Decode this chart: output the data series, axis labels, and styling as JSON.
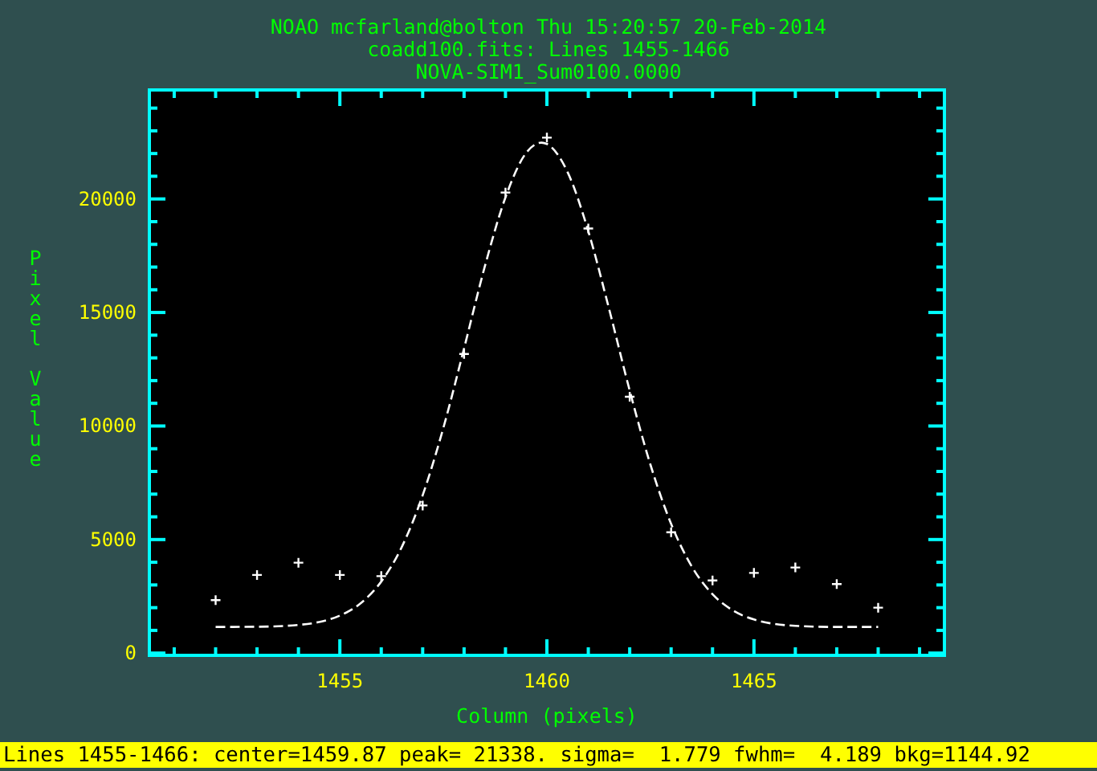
{
  "chart_data": {
    "type": "scatter",
    "title": "NOAO mcfarland@bolton Thu 15:20:57 20-Feb-2014",
    "subtitle": "coadd100.fits: Lines 1455-1466",
    "xlabel": "Column (pixels)",
    "ylabel": "Pixel Value",
    "annotations": [
      "NOVA-SIM1_Sum0100.0000",
      "Lines 1455-1466: center=1459.87 peak= 21338. sigma=  1.779 fwhm=  4.189 bkg=1144.92"
    ],
    "xlim": [
      1450.4,
      1469.6
    ],
    "ylim": [
      -100,
      24800
    ],
    "xticks": [
      {
        "value": 1451,
        "label": null
      },
      {
        "value": 1452,
        "label": null
      },
      {
        "value": 1453,
        "label": null
      },
      {
        "value": 1454,
        "label": null
      },
      1455,
      {
        "value": 1456,
        "label": null
      },
      {
        "value": 1457,
        "label": null
      },
      {
        "value": 1458,
        "label": null
      },
      {
        "value": 1459,
        "label": null
      },
      1460,
      {
        "value": 1461,
        "label": null
      },
      {
        "value": 1462,
        "label": null
      },
      {
        "value": 1463,
        "label": null
      },
      {
        "value": 1464,
        "label": null
      },
      1465,
      {
        "value": 1466,
        "label": null
      },
      {
        "value": 1467,
        "label": null
      },
      {
        "value": 1468,
        "label": null
      },
      {
        "value": 1469,
        "label": null
      }
    ],
    "yticks": [
      0,
      {
        "value": 1000,
        "label": null
      },
      {
        "value": 2000,
        "label": null
      },
      {
        "value": 3000,
        "label": null
      },
      {
        "value": 4000,
        "label": null
      },
      5000,
      {
        "value": 6000,
        "label": null
      },
      {
        "value": 7000,
        "label": null
      },
      {
        "value": 8000,
        "label": null
      },
      {
        "value": 9000,
        "label": null
      },
      10000,
      {
        "value": 11000,
        "label": null
      },
      {
        "value": 12000,
        "label": null
      },
      {
        "value": 13000,
        "label": null
      },
      {
        "value": 14000,
        "label": null
      },
      15000,
      {
        "value": 16000,
        "label": null
      },
      {
        "value": 17000,
        "label": null
      },
      {
        "value": 18000,
        "label": null
      },
      {
        "value": 19000,
        "label": null
      },
      20000,
      {
        "value": 21000,
        "label": null
      },
      {
        "value": 22000,
        "label": null
      },
      {
        "value": 23000,
        "label": null
      },
      {
        "value": 24000,
        "label": null
      }
    ],
    "grid": false,
    "series": [
      {
        "marker": "cross",
        "color": "#ffffff",
        "x": [
          1452,
          1453,
          1454,
          1455,
          1456,
          1457,
          1458,
          1459,
          1460,
          1461,
          1462,
          1463,
          1464,
          1465,
          1466,
          1467,
          1468
        ],
        "values": [
          2330,
          3440,
          3980,
          3440,
          3390,
          6500,
          13170,
          20280,
          22700,
          18700,
          11290,
          5320,
          3200,
          3530,
          3770,
          3040,
          2000
        ]
      },
      {
        "type": "line",
        "line_style": "dashed",
        "color": "#ffffff",
        "x": [
          1452,
          1453,
          1454,
          1454.5,
          1455,
          1455.5,
          1456,
          1456.5,
          1457,
          1457.5,
          1458,
          1458.5,
          1459,
          1459.5,
          1459.87,
          1460,
          1460.5,
          1461,
          1461.5,
          1462,
          1462.5,
          1463,
          1463.5,
          1464,
          1464.5,
          1465,
          1466,
          1467,
          1468
        ],
        "values": [
          1150,
          1160,
          1240,
          1370,
          1650,
          2190,
          3150,
          4690,
          6950,
          9920,
          13420,
          17020,
          20070,
          22030,
          22480,
          22420,
          21180,
          18580,
          15170,
          11560,
          8300,
          5690,
          3810,
          2590,
          1870,
          1480,
          1200,
          1150,
          1150
        ]
      }
    ]
  }
}
